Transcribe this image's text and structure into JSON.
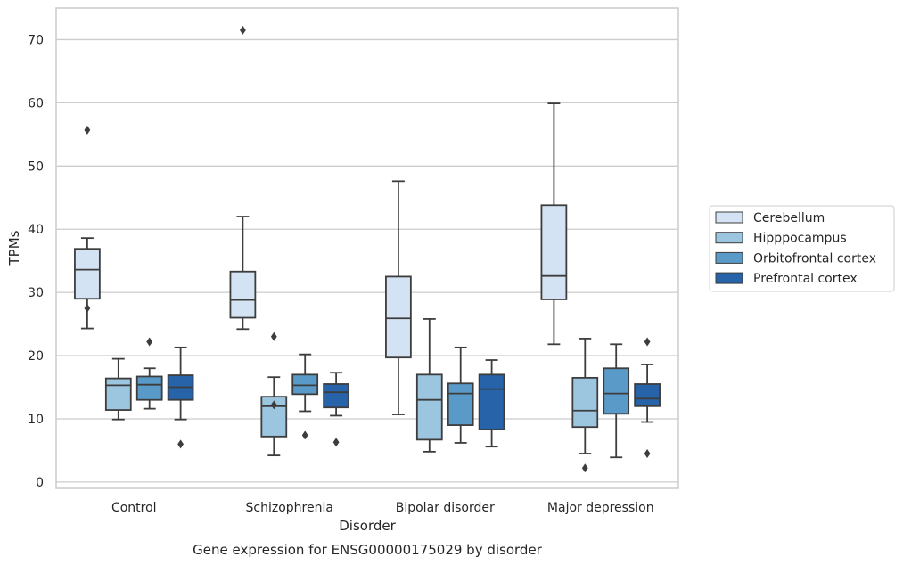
{
  "chart_data": {
    "type": "boxplot",
    "title": "",
    "caption": "Gene expression for ENSG00000175029 by disorder",
    "xlabel": "Disorder",
    "ylabel": "TPMs",
    "ylim": [
      -1,
      75
    ],
    "yticks": [
      0,
      10,
      20,
      30,
      40,
      50,
      60,
      70
    ],
    "grid": "y",
    "legend_position": "right",
    "categories": [
      "Control",
      "Schizophrenia",
      "Bipolar disorder",
      "Major depression"
    ],
    "series": [
      {
        "name": "Cerebellum",
        "color": "#d4e3f3",
        "boxes": [
          {
            "whislo": 24.3,
            "q1": 29.0,
            "med": 33.6,
            "q3": 36.9,
            "whishi": 38.6,
            "fliers": [
              27.5,
              55.7
            ]
          },
          {
            "whislo": 24.2,
            "q1": 26.0,
            "med": 28.8,
            "q3": 33.3,
            "whishi": 42.0,
            "fliers": [
              71.5
            ]
          },
          {
            "whislo": 10.7,
            "q1": 19.7,
            "med": 25.9,
            "q3": 32.5,
            "whishi": 47.6,
            "fliers": []
          },
          {
            "whislo": 21.8,
            "q1": 28.9,
            "med": 32.6,
            "q3": 43.8,
            "whishi": 59.9,
            "fliers": []
          }
        ]
      },
      {
        "name": "Hipppocampus",
        "color": "#9cc5df",
        "boxes": [
          {
            "whislo": 9.9,
            "q1": 11.4,
            "med": 15.3,
            "q3": 16.4,
            "whishi": 19.5,
            "fliers": []
          },
          {
            "whislo": 4.2,
            "q1": 7.2,
            "med": 12.0,
            "q3": 13.5,
            "whishi": 16.6,
            "fliers": [
              12.2,
              23.0
            ]
          },
          {
            "whislo": 4.8,
            "q1": 6.7,
            "med": 13.0,
            "q3": 17.0,
            "whishi": 25.8,
            "fliers": []
          },
          {
            "whislo": 4.5,
            "q1": 8.7,
            "med": 11.3,
            "q3": 16.5,
            "whishi": 22.7,
            "fliers": [
              2.2
            ]
          }
        ]
      },
      {
        "name": "Orbitofrontal cortex",
        "color": "#5a9ac8",
        "boxes": [
          {
            "whislo": 11.6,
            "q1": 13.0,
            "med": 15.4,
            "q3": 16.7,
            "whishi": 18.0,
            "fliers": [
              22.2
            ]
          },
          {
            "whislo": 11.2,
            "q1": 13.9,
            "med": 15.3,
            "q3": 17.0,
            "whishi": 20.2,
            "fliers": [
              7.4
            ]
          },
          {
            "whislo": 6.2,
            "q1": 9.0,
            "med": 14.0,
            "q3": 15.6,
            "whishi": 21.3,
            "fliers": []
          },
          {
            "whislo": 3.9,
            "q1": 10.8,
            "med": 14.0,
            "q3": 18.0,
            "whishi": 21.8,
            "fliers": []
          }
        ]
      },
      {
        "name": "Prefrontal cortex",
        "color": "#2663a9",
        "boxes": [
          {
            "whislo": 9.9,
            "q1": 13.0,
            "med": 15.0,
            "q3": 16.9,
            "whishi": 21.3,
            "fliers": [
              6.0
            ]
          },
          {
            "whislo": 10.5,
            "q1": 11.8,
            "med": 14.2,
            "q3": 15.5,
            "whishi": 17.3,
            "fliers": [
              6.3
            ]
          },
          {
            "whislo": 5.6,
            "q1": 8.3,
            "med": 14.7,
            "q3": 17.0,
            "whishi": 19.3,
            "fliers": []
          },
          {
            "whislo": 9.5,
            "q1": 12.0,
            "med": 13.2,
            "q3": 15.5,
            "whishi": 18.6,
            "fliers": [
              4.5,
              22.2
            ]
          }
        ]
      }
    ]
  }
}
